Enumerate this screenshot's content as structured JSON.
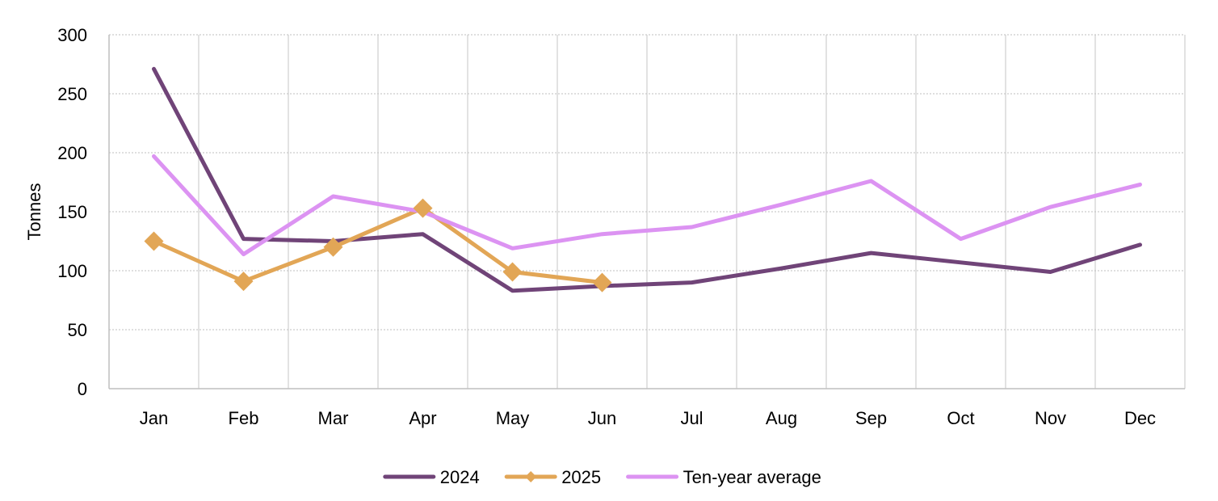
{
  "chart_data": {
    "type": "line",
    "title": "",
    "xlabel": "",
    "ylabel": "Tonnes",
    "ylim": [
      0,
      300
    ],
    "yticks": [
      0,
      50,
      100,
      150,
      200,
      250,
      300
    ],
    "categories": [
      "Jan",
      "Feb",
      "Mar",
      "Apr",
      "May",
      "Jun",
      "Jul",
      "Aug",
      "Sep",
      "Oct",
      "Nov",
      "Dec"
    ],
    "grid": {
      "horizontal": "dotted",
      "vertical": "solid"
    },
    "legend_position": "bottom",
    "series": [
      {
        "name": "2024",
        "color": "#704478",
        "marker": "none",
        "values": [
          271,
          127,
          125,
          131,
          83,
          87,
          90,
          102,
          115,
          107,
          99,
          122
        ]
      },
      {
        "name": "2025",
        "color": "#E2A656",
        "marker": "diamond",
        "values": [
          125,
          91,
          120,
          153,
          99,
          90,
          null,
          null,
          null,
          null,
          null,
          null
        ]
      },
      {
        "name": "Ten-year average",
        "color": "#DC93F2",
        "marker": "none",
        "values": [
          197,
          114,
          163,
          150,
          119,
          131,
          137,
          156,
          176,
          127,
          154,
          173
        ]
      }
    ]
  }
}
